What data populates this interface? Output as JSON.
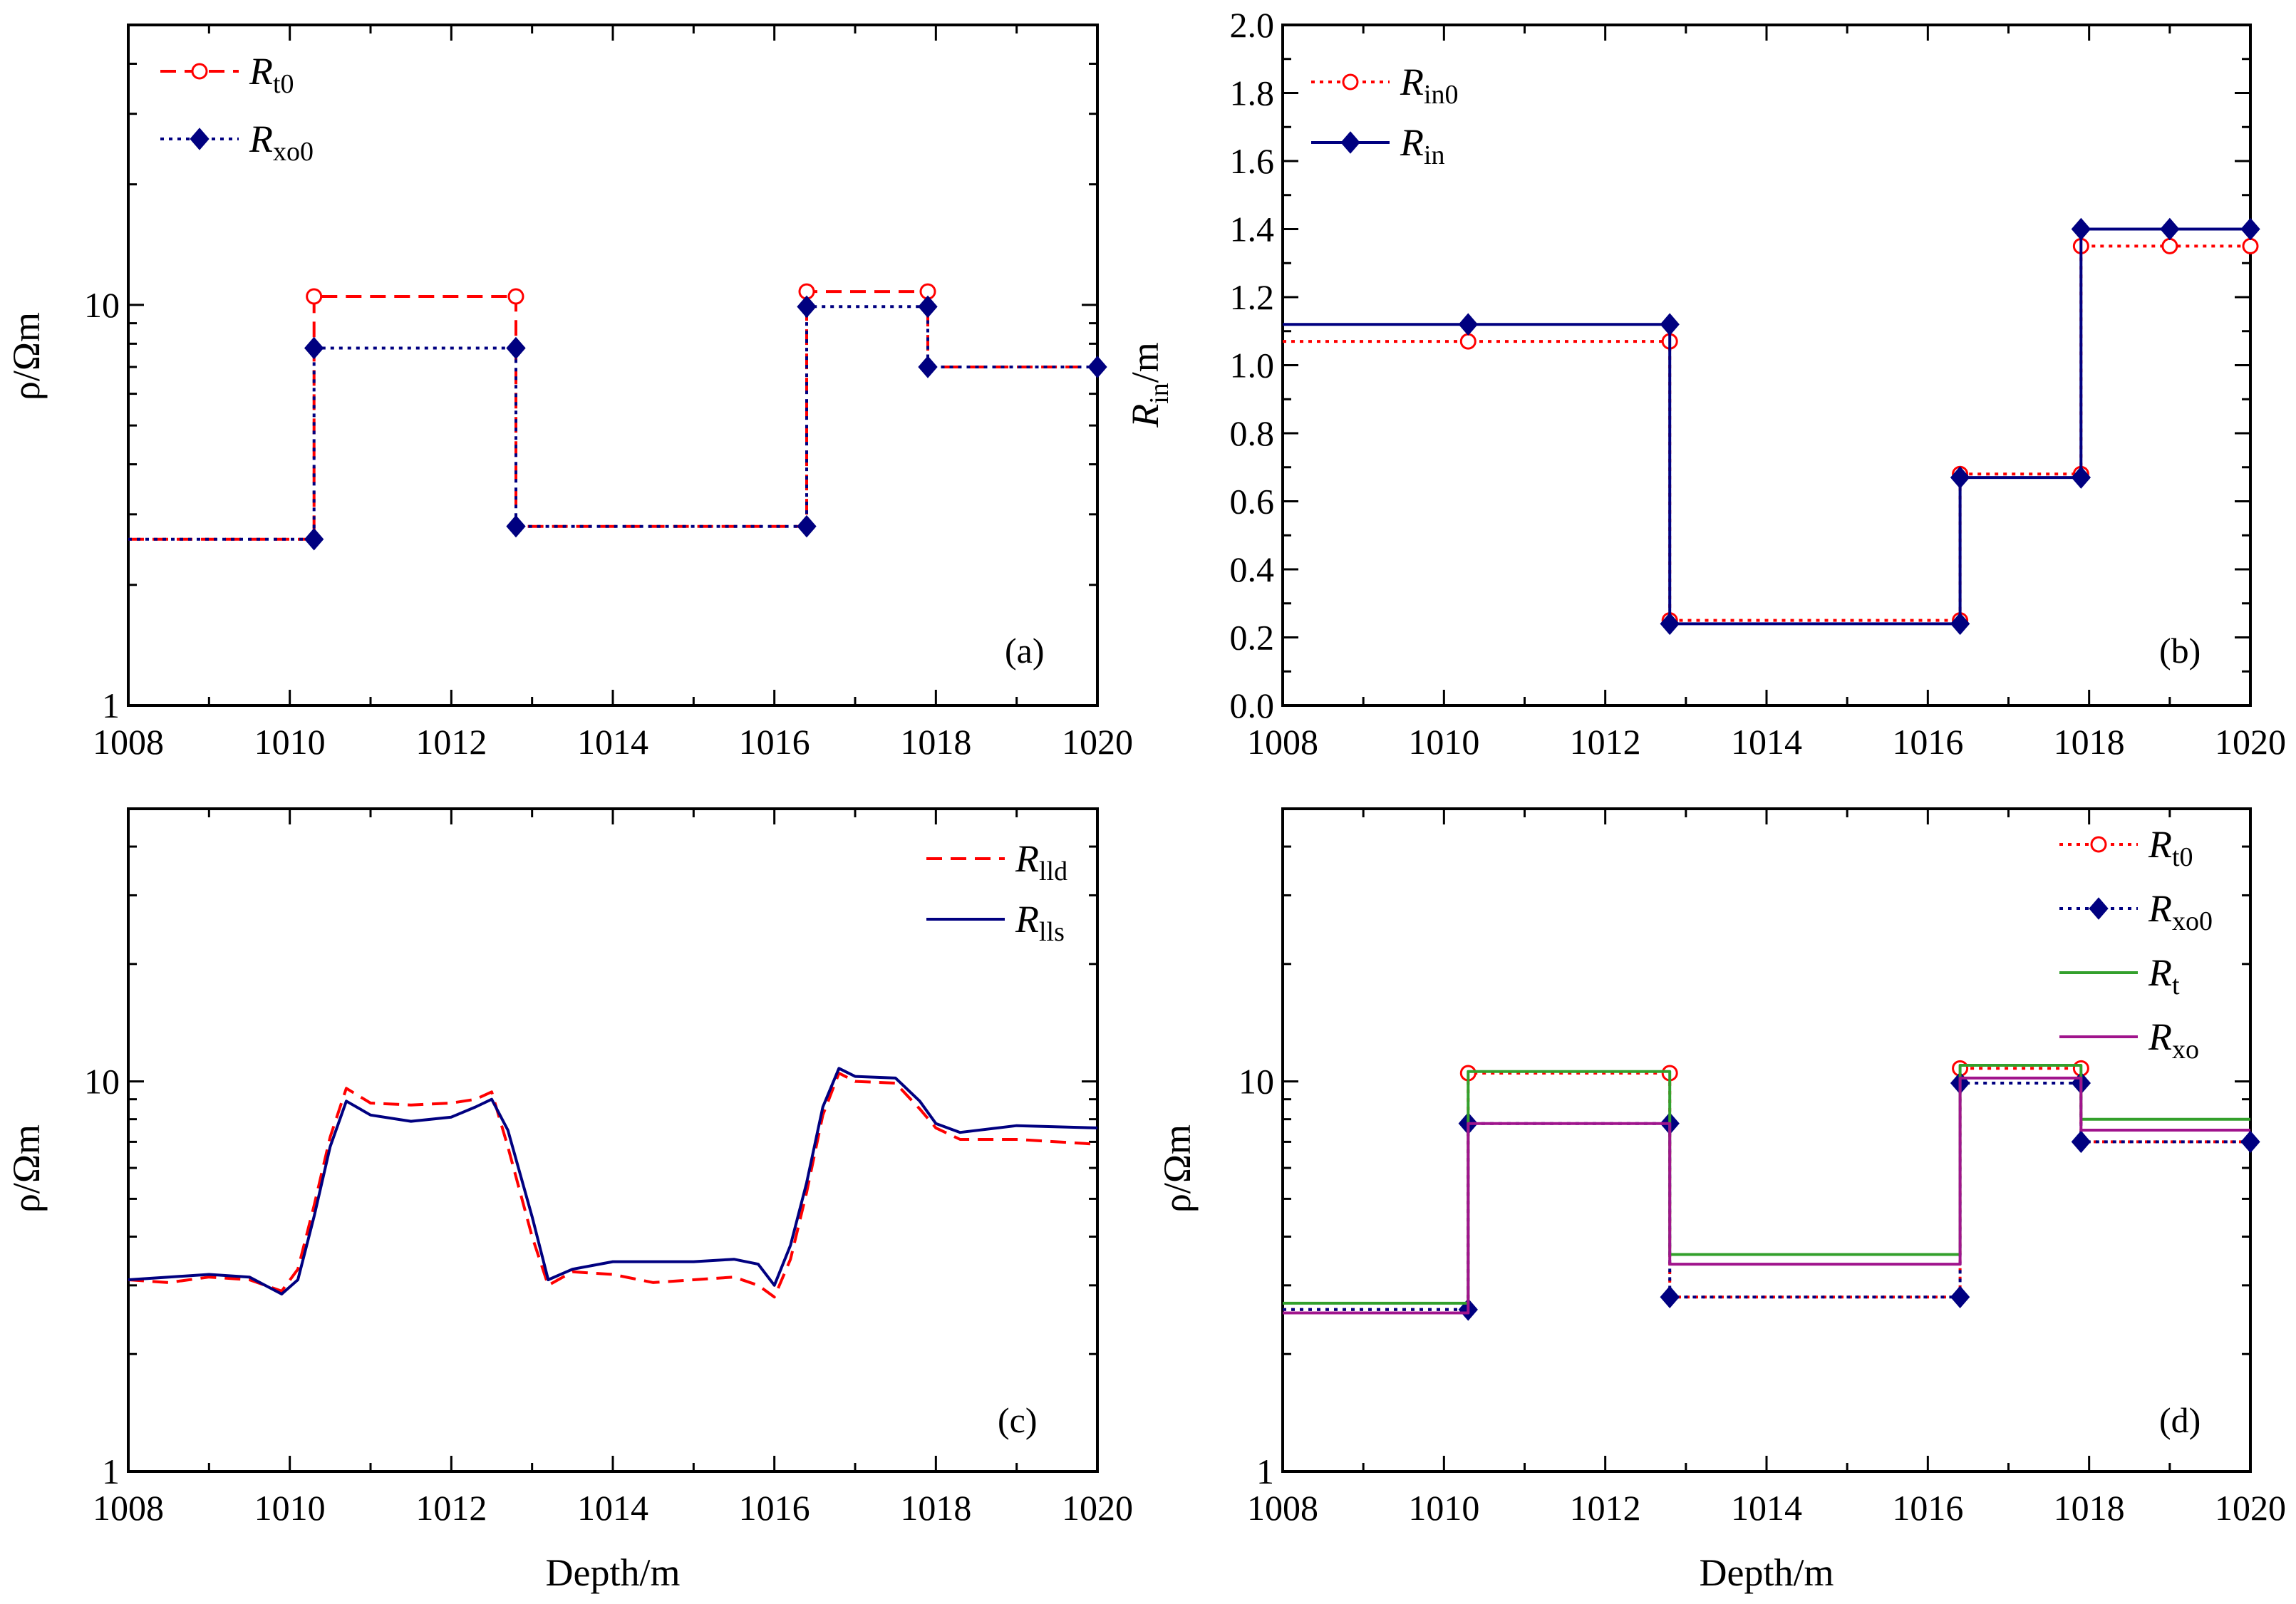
{
  "chart_data": [
    {
      "type": "line",
      "panel_label": "(a)",
      "xlabel": "",
      "ylabel": "ρ/Ωm",
      "xlim": [
        1008,
        1020
      ],
      "ylim": [
        1,
        50
      ],
      "yscale": "log",
      "x_ticks": [
        "1008",
        "1010",
        "1012",
        "1014",
        "1016",
        "1018",
        "1020"
      ],
      "y_ticks": [
        "1",
        "10"
      ],
      "legend_position": "top-left",
      "series": [
        {
          "name": "Rt0",
          "legend_main": "R",
          "legend_sub": "t0",
          "color": "#ff0000",
          "dash": "dashed",
          "marker": "open-circle",
          "x": [
            1008,
            1010.3,
            1010.3,
            1012.8,
            1012.8,
            1016.4,
            1016.4,
            1017.9,
            1017.9,
            1020
          ],
          "y": [
            2.6,
            2.6,
            10.5,
            10.5,
            2.8,
            2.8,
            10.8,
            10.8,
            7.0,
            7.0
          ],
          "marker_x": [
            1010.3,
            1012.8,
            1016.4,
            1017.9
          ],
          "marker_y": [
            10.5,
            10.5,
            10.8,
            10.8
          ]
        },
        {
          "name": "Rxo0",
          "legend_main": "R",
          "legend_sub": "xo0",
          "color": "#000080",
          "dash": "dotted",
          "marker": "filled-diamond",
          "x": [
            1008,
            1010.3,
            1010.3,
            1012.8,
            1012.8,
            1016.4,
            1016.4,
            1017.9,
            1017.9,
            1020
          ],
          "y": [
            2.6,
            2.6,
            7.8,
            7.8,
            2.8,
            2.8,
            9.9,
            9.9,
            7.0,
            7.0
          ],
          "marker_x": [
            1010.3,
            1010.3,
            1012.8,
            1012.8,
            1016.4,
            1016.4,
            1017.9,
            1017.9,
            1020
          ],
          "marker_y": [
            2.6,
            7.8,
            7.8,
            2.8,
            2.8,
            9.9,
            9.9,
            7.0,
            7.0
          ]
        }
      ]
    },
    {
      "type": "line",
      "panel_label": "(b)",
      "xlabel": "",
      "ylabel": "Rin/m",
      "ylabel_main": "R",
      "ylabel_sub": "in",
      "ylabel_unit": "/m",
      "xlim": [
        1008,
        1020
      ],
      "ylim": [
        0.0,
        2.0
      ],
      "yscale": "linear",
      "x_ticks": [
        "1008",
        "1010",
        "1012",
        "1014",
        "1016",
        "1018",
        "1020"
      ],
      "y_ticks": [
        "0.0",
        "0.2",
        "0.4",
        "0.6",
        "0.8",
        "1.0",
        "1.2",
        "1.4",
        "1.6",
        "1.8",
        "2.0"
      ],
      "legend_position": "top-left",
      "series": [
        {
          "name": "Rin0",
          "legend_main": "R",
          "legend_sub": "in0",
          "color": "#ff0000",
          "dash": "dotted",
          "marker": "open-circle",
          "x": [
            1008,
            1012.8,
            1012.8,
            1016.4,
            1016.4,
            1017.9,
            1017.9,
            1020
          ],
          "y": [
            1.07,
            1.07,
            0.25,
            0.25,
            0.68,
            0.68,
            1.35,
            1.35
          ],
          "marker_x": [
            1010.3,
            1012.8,
            1012.8,
            1016.4,
            1016.4,
            1017.9,
            1017.9,
            1019,
            1020
          ],
          "marker_y": [
            1.07,
            1.07,
            0.25,
            0.25,
            0.68,
            0.68,
            1.35,
            1.35,
            1.35
          ]
        },
        {
          "name": "Rin",
          "legend_main": "R",
          "legend_sub": "in",
          "color": "#000080",
          "dash": "solid",
          "marker": "filled-diamond",
          "x": [
            1008,
            1012.8,
            1012.8,
            1016.4,
            1016.4,
            1017.9,
            1017.9,
            1020
          ],
          "y": [
            1.12,
            1.12,
            0.24,
            0.24,
            0.67,
            0.67,
            1.4,
            1.4
          ],
          "marker_x": [
            1010.3,
            1012.8,
            1012.8,
            1016.4,
            1016.4,
            1017.9,
            1017.9,
            1019,
            1020
          ],
          "marker_y": [
            1.12,
            1.12,
            0.24,
            0.24,
            0.67,
            0.67,
            1.4,
            1.4,
            1.4
          ]
        }
      ]
    },
    {
      "type": "line",
      "panel_label": "(c)",
      "xlabel": "Depth/m",
      "ylabel": "ρ/Ωm",
      "xlim": [
        1008,
        1020
      ],
      "ylim": [
        1,
        50
      ],
      "yscale": "log",
      "x_ticks": [
        "1008",
        "1010",
        "1012",
        "1014",
        "1016",
        "1018",
        "1020"
      ],
      "y_ticks": [
        "1",
        "10"
      ],
      "legend_position": "top-right",
      "series": [
        {
          "name": "Rlld",
          "legend_main": "R",
          "legend_sub": "lld",
          "color": "#ff0000",
          "dash": "dashed",
          "marker": "none",
          "x": [
            1008,
            1008.5,
            1009,
            1009.5,
            1009.9,
            1010.1,
            1010.3,
            1010.5,
            1010.7,
            1011,
            1011.5,
            1012,
            1012.3,
            1012.5,
            1012.7,
            1013,
            1013.2,
            1013.5,
            1014,
            1014.5,
            1015,
            1015.5,
            1015.8,
            1016,
            1016.2,
            1016.4,
            1016.6,
            1016.8,
            1017,
            1017.5,
            1017.8,
            1018,
            1018.3,
            1019,
            1020
          ],
          "y": [
            3.1,
            3.05,
            3.15,
            3.1,
            2.9,
            3.3,
            4.8,
            7.2,
            9.6,
            8.8,
            8.7,
            8.8,
            9.0,
            9.4,
            6.8,
            4.0,
            3.0,
            3.25,
            3.2,
            3.05,
            3.1,
            3.15,
            3.0,
            2.8,
            3.5,
            5.2,
            8.2,
            10.5,
            10.0,
            9.9,
            8.5,
            7.6,
            7.1,
            7.1,
            6.9
          ]
        },
        {
          "name": "Rlls",
          "legend_main": "R",
          "legend_sub": "lls",
          "color": "#000080",
          "dash": "solid",
          "marker": "none",
          "x": [
            1008,
            1008.5,
            1009,
            1009.5,
            1009.9,
            1010.1,
            1010.3,
            1010.5,
            1010.7,
            1011,
            1011.5,
            1012,
            1012.3,
            1012.5,
            1012.7,
            1013,
            1013.2,
            1013.5,
            1014,
            1014.5,
            1015,
            1015.5,
            1015.8,
            1016,
            1016.2,
            1016.4,
            1016.6,
            1016.8,
            1017,
            1017.5,
            1017.8,
            1018,
            1018.3,
            1019,
            1020
          ],
          "y": [
            3.1,
            3.15,
            3.2,
            3.15,
            2.85,
            3.1,
            4.5,
            6.8,
            8.9,
            8.2,
            7.9,
            8.1,
            8.6,
            9.0,
            7.5,
            4.5,
            3.1,
            3.3,
            3.45,
            3.45,
            3.45,
            3.5,
            3.4,
            3.0,
            3.8,
            5.5,
            8.6,
            10.8,
            10.3,
            10.2,
            8.9,
            7.8,
            7.4,
            7.7,
            7.6
          ]
        }
      ]
    },
    {
      "type": "line",
      "panel_label": "(d)",
      "xlabel": "Depth/m",
      "ylabel": "ρ/Ωm",
      "xlim": [
        1008,
        1020
      ],
      "ylim": [
        1,
        50
      ],
      "yscale": "log",
      "x_ticks": [
        "1008",
        "1010",
        "1012",
        "1014",
        "1016",
        "1018",
        "1020"
      ],
      "y_ticks": [
        "1",
        "10"
      ],
      "legend_position": "top-right",
      "series": [
        {
          "name": "Rt0",
          "legend_main": "R",
          "legend_sub": "t0",
          "color": "#ff0000",
          "dash": "dotted",
          "marker": "open-circle",
          "x": [
            1008,
            1010.3,
            1010.3,
            1012.8,
            1012.8,
            1016.4,
            1016.4,
            1017.9,
            1017.9,
            1020
          ],
          "y": [
            2.6,
            2.6,
            10.5,
            10.5,
            2.8,
            2.8,
            10.8,
            10.8,
            7.0,
            7.0
          ],
          "marker_x": [
            1010.3,
            1012.8,
            1016.4,
            1017.9
          ],
          "marker_y": [
            10.5,
            10.5,
            10.8,
            10.8
          ]
        },
        {
          "name": "Rxo0",
          "legend_main": "R",
          "legend_sub": "xo0",
          "color": "#000080",
          "dash": "dotted",
          "marker": "filled-diamond",
          "x": [
            1008,
            1010.3,
            1010.3,
            1012.8,
            1012.8,
            1016.4,
            1016.4,
            1017.9,
            1017.9,
            1020
          ],
          "y": [
            2.6,
            2.6,
            7.8,
            7.8,
            2.8,
            2.8,
            9.9,
            9.9,
            7.0,
            7.0
          ],
          "marker_x": [
            1010.3,
            1010.3,
            1012.8,
            1012.8,
            1016.4,
            1016.4,
            1017.9,
            1017.9,
            1020
          ],
          "marker_y": [
            2.6,
            7.8,
            7.8,
            2.8,
            2.8,
            9.9,
            9.9,
            7.0,
            7.0
          ]
        },
        {
          "name": "Rt",
          "legend_main": "R",
          "legend_sub": "t",
          "color": "#33a02c",
          "dash": "solid",
          "marker": "none",
          "x": [
            1008,
            1010.3,
            1010.3,
            1012.8,
            1012.8,
            1016.4,
            1016.4,
            1017.9,
            1017.9,
            1020
          ],
          "y": [
            2.7,
            2.7,
            10.6,
            10.6,
            3.6,
            3.6,
            11.0,
            11.0,
            8.0,
            8.0
          ]
        },
        {
          "name": "Rxo",
          "legend_main": "R",
          "legend_sub": "xo",
          "color": "#a0148c",
          "dash": "solid",
          "marker": "none",
          "x": [
            1008,
            1010.3,
            1010.3,
            1012.8,
            1012.8,
            1016.4,
            1016.4,
            1017.9,
            1017.9,
            1020
          ],
          "y": [
            2.55,
            2.55,
            7.8,
            7.8,
            3.4,
            3.4,
            10.2,
            10.2,
            7.5,
            7.5
          ]
        }
      ]
    }
  ]
}
